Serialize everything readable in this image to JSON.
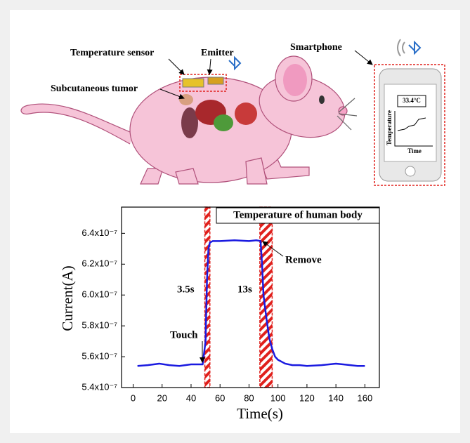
{
  "illustration": {
    "sensor_label": "Temperature sensor",
    "emitter_label": "Emitter",
    "tumor_label": "Subcutaneous  tumor",
    "phone_label": "Smartphone",
    "phone_reading": "33.4°C",
    "phone_y_label": "Temperature",
    "phone_x_label": "Time"
  },
  "chart_data": {
    "type": "line",
    "title": "Temperature of  human body",
    "x_label": "Time(s)",
    "y_label": "Current(A)",
    "annotations": [
      "Remove",
      "3.5s",
      "13s",
      "Touch"
    ],
    "x": [
      3,
      10,
      18,
      25,
      32,
      40,
      45,
      48,
      50,
      51,
      52,
      53,
      55,
      60,
      70,
      80,
      85,
      88,
      89,
      90,
      92,
      94,
      96,
      98,
      100,
      105,
      110,
      115,
      120,
      130,
      140,
      145,
      150,
      155,
      160
    ],
    "values": [
      5.54e-07,
      5.545e-07,
      5.555e-07,
      5.545e-07,
      5.54e-07,
      5.55e-07,
      5.55e-07,
      5.55e-07,
      5.7e-07,
      6.1e-07,
      6.3e-07,
      6.34e-07,
      6.35e-07,
      6.35e-07,
      6.355e-07,
      6.35e-07,
      6.355e-07,
      6.35e-07,
      6.2e-07,
      6e-07,
      5.85e-07,
      5.72e-07,
      5.65e-07,
      5.6e-07,
      5.58e-07,
      5.555e-07,
      5.545e-07,
      5.545e-07,
      5.54e-07,
      5.545e-07,
      5.555e-07,
      5.55e-07,
      5.545e-07,
      5.54e-07,
      5.54e-07
    ],
    "color": "#1a1ae0",
    "shaded_ranges": [
      [
        49.5,
        53
      ],
      [
        87.5,
        96
      ]
    ],
    "shade_color": "#e0201c",
    "xlim": [
      -8,
      170
    ],
    "xticks": [
      0,
      20,
      40,
      60,
      80,
      100,
      120,
      140,
      160
    ],
    "ylim": [
      5.4e-07,
      6.57e-07
    ],
    "yticks": [
      {
        "value": 5.4e-07,
        "label": "5.4x10⁻⁷"
      },
      {
        "value": 5.6e-07,
        "label": "5.6x10⁻⁷"
      },
      {
        "value": 5.8e-07,
        "label": "5.8x10⁻⁷"
      },
      {
        "value": 6e-07,
        "label": "6.0x10⁻⁷"
      },
      {
        "value": 6.2e-07,
        "label": "6.2x10⁻⁷"
      },
      {
        "value": 6.4e-07,
        "label": "6.4x10⁻⁷"
      }
    ]
  }
}
